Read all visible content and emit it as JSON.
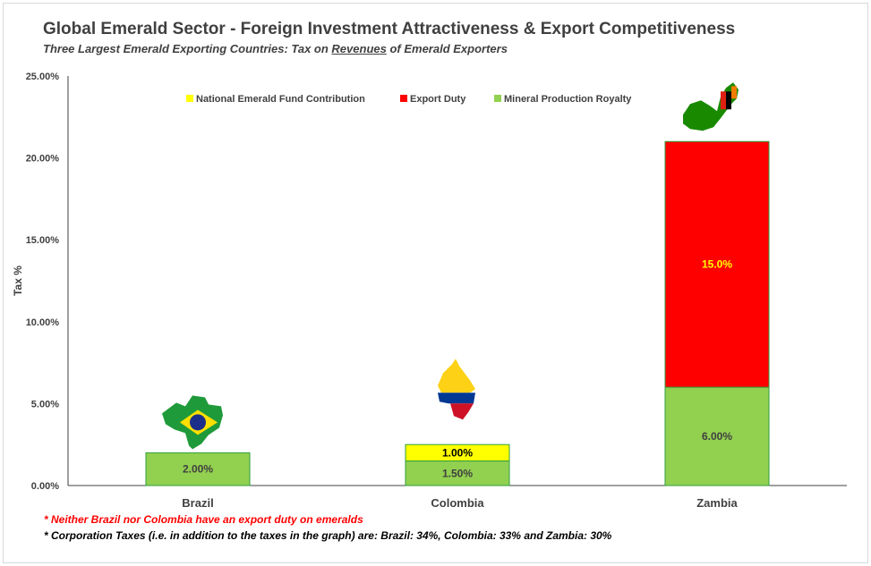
{
  "header": {
    "title": "Global Emerald Sector - Foreign Investment Attractiveness & Export Competitiveness",
    "subtitle_pre": "Three Largest Emerald Exporting Countries: Tax on ",
    "subtitle_em": "Revenues",
    "subtitle_post": " of Emerald Exporters"
  },
  "chart_data": {
    "type": "bar",
    "stacked": true,
    "categories": [
      "Brazil",
      "Colombia",
      "Zambia"
    ],
    "series": [
      {
        "name": "Mineral Production Royalty",
        "color": "#92d050",
        "values": [
          2.0,
          1.5,
          6.0
        ],
        "labels": [
          "2.00%",
          "1.50%",
          "6.00%"
        ],
        "label_color": "#404040"
      },
      {
        "name": "National Emerald Fund Contribution",
        "color": "#ffff00",
        "values": [
          0,
          1.0,
          0
        ],
        "labels": [
          "",
          "1.00%",
          ""
        ],
        "label_color": "#000000"
      },
      {
        "name": "Export Duty",
        "color": "#ff0000",
        "values": [
          0,
          0,
          15.0
        ],
        "labels": [
          "",
          "",
          "15.0%"
        ],
        "label_color": "#ffff00"
      }
    ],
    "legend_order": [
      "National Emerald Fund Contribution",
      "Export Duty",
      "Mineral Production Royalty"
    ],
    "ylabel": "Tax %",
    "ylim": [
      0,
      25
    ],
    "yticks": [
      0,
      5,
      10,
      15,
      20,
      25
    ],
    "ytick_labels": [
      "0.00%",
      "5.00%",
      "10.00%",
      "15.00%",
      "20.00%",
      "25.00%"
    ],
    "grid": false,
    "legend_position": "top",
    "flag_icons": [
      "brazil-flag-map-icon",
      "colombia-flag-map-icon",
      "zambia-flag-map-icon"
    ]
  },
  "notes": {
    "note1": "* Neither Brazil nor Colombia have an export duty on emeralds",
    "note2": "* Corporation Taxes (i.e. in addition to the taxes in the graph) are: Brazil: 34%, Colombia: 33% and Zambia: 30%"
  }
}
